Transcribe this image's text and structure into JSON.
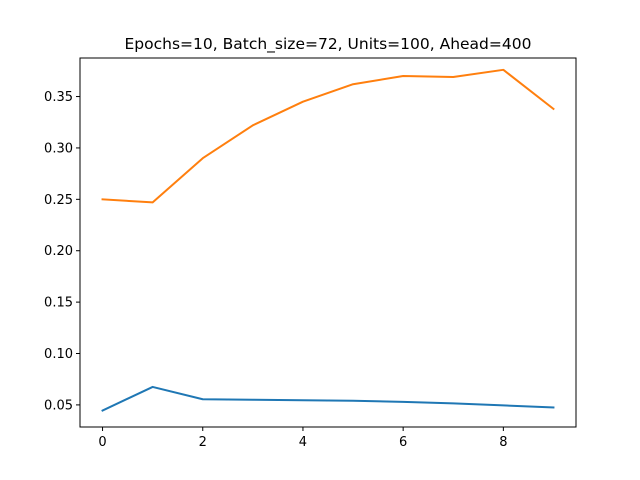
{
  "chart_data": {
    "type": "line",
    "title": "Epochs=10, Batch_size=72, Units=100, Ahead=400",
    "xlabel": "",
    "ylabel": "",
    "x": [
      0,
      1,
      2,
      3,
      4,
      5,
      6,
      7,
      8,
      9
    ],
    "xlim": [
      -0.45,
      9.45
    ],
    "ylim": [
      0.0285,
      0.3875
    ],
    "xticks": [
      0,
      2,
      4,
      6,
      8
    ],
    "yticks": [
      0.05,
      0.1,
      0.15,
      0.2,
      0.25,
      0.3,
      0.35
    ],
    "ytick_labels": [
      "0.05",
      "0.10",
      "0.15",
      "0.20",
      "0.25",
      "0.30",
      "0.35"
    ],
    "grid": false,
    "legend": "none",
    "series": [
      {
        "color": "#1f77b4",
        "values": [
          0.0445,
          0.0675,
          0.0555,
          0.055,
          0.0545,
          0.054,
          0.053,
          0.0515,
          0.0495,
          0.0475
        ]
      },
      {
        "color": "#ff7f0e",
        "values": [
          0.25,
          0.247,
          0.29,
          0.322,
          0.345,
          0.362,
          0.37,
          0.369,
          0.376,
          0.338
        ]
      }
    ]
  }
}
